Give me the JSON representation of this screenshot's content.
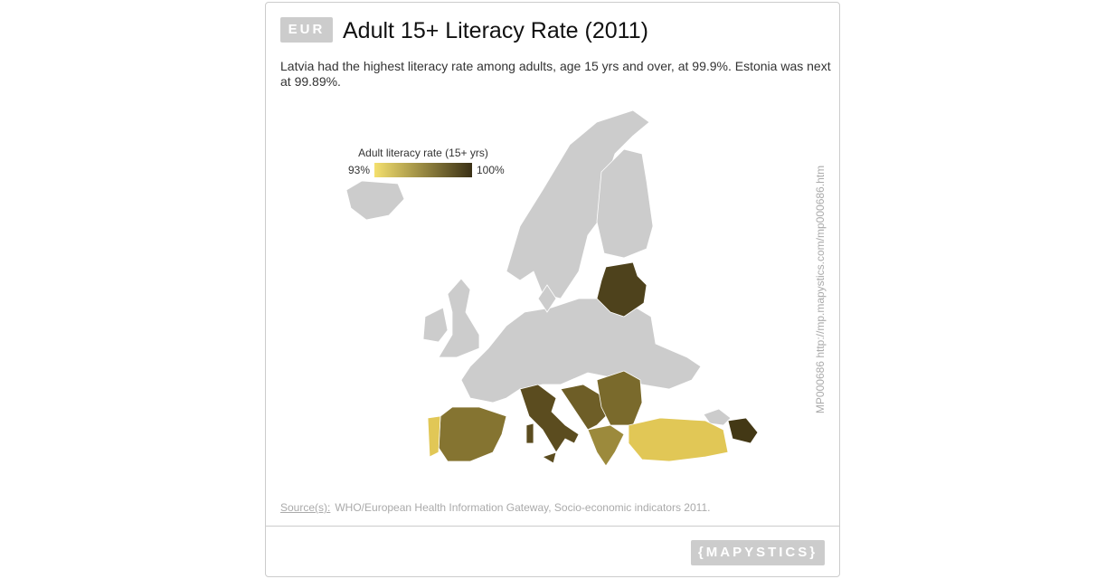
{
  "header": {
    "badge": "EUR",
    "title": "Adult 15+ Literacy Rate (2011)"
  },
  "description": "Latvia had the highest literacy rate among adults, age 15 yrs and over, at 99.9%. Estonia was next at 99.89%.",
  "legend": {
    "title": "Adult literacy rate (15+ yrs)",
    "range": [
      {
        "value": 93,
        "label": "93%"
      },
      {
        "value": 100,
        "label": "100%"
      }
    ]
  },
  "side_note": "MP000686 http://mp.mapystics.com/mp000686.htm",
  "source": {
    "label": "Source(s):",
    "text": "WHO/European Health Information Gateway, Socio-economic indicators 2011."
  },
  "logo": "{MAPYSTICS}"
}
